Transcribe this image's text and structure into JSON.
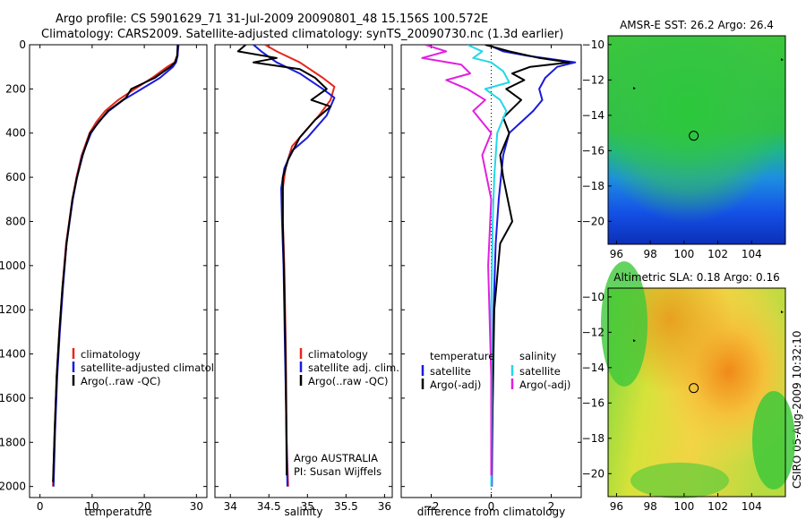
{
  "header": {
    "line1": "Argo profile: CS 5901629_71 31-Jul-2009 20090801_48 15.156S 100.572E",
    "line2": "Climatology: CARS2009. Satellite-adjusted climatology: synTS_20090730.nc (1.3d earlier)"
  },
  "side_label": "CSIRO 05-Aug-2009 10:32:10",
  "colors": {
    "climatology": "#e8261c",
    "satellite": "#1a1adc",
    "argo": "#000000",
    "satellite_salinity": "#22d8e8",
    "argo_salinity_adj": "#e020e0"
  },
  "chart_data": [
    {
      "type": "line",
      "name": "temperature-profile",
      "xlabel": "temperature",
      "ylabel": "",
      "xlim": [
        -2,
        32
      ],
      "ylim": [
        2050,
        0
      ],
      "xticks": [
        0,
        10,
        20,
        30
      ],
      "yticks": [
        0,
        200,
        400,
        600,
        800,
        1000,
        1200,
        1400,
        1600,
        1800,
        2000
      ],
      "legend": [
        "climatology",
        "satellite-adjusted climatology",
        "Argo(..raw -QC)"
      ],
      "series": [
        {
          "name": "climatology",
          "color": "#e8261c",
          "x": [
            26.6,
            26.3,
            25.8,
            24.4,
            21.5,
            18.2,
            15.0,
            12.5,
            10.8,
            9.5,
            8.0,
            7.0,
            6.2,
            5.0,
            4.3,
            3.7,
            3.2,
            2.8,
            2.5
          ],
          "y": [
            0,
            50,
            80,
            100,
            150,
            200,
            250,
            300,
            350,
            400,
            500,
            600,
            700,
            900,
            1100,
            1300,
            1500,
            1750,
            2000
          ]
        },
        {
          "name": "satellite-adjusted climatology",
          "color": "#1a1adc",
          "x": [
            26.5,
            26.4,
            26.1,
            25.5,
            23.0,
            19.5,
            16.0,
            13.2,
            11.2,
            9.8,
            8.1,
            7.1,
            6.3,
            5.1,
            4.4,
            3.8,
            3.3,
            2.9,
            2.6
          ],
          "y": [
            0,
            50,
            80,
            100,
            150,
            200,
            250,
            300,
            350,
            400,
            500,
            600,
            700,
            900,
            1100,
            1300,
            1500,
            1750,
            2000
          ]
        },
        {
          "name": "Argo(..raw -QC)",
          "color": "#000000",
          "x": [
            26.4,
            26.3,
            25.9,
            25.0,
            22.0,
            17.5,
            16.5,
            13.0,
            11.3,
            9.6,
            8.2,
            7.1,
            6.2,
            5.1,
            4.3,
            3.7,
            3.2,
            2.8,
            2.5
          ],
          "y": [
            0,
            50,
            80,
            100,
            150,
            200,
            240,
            300,
            350,
            400,
            500,
            600,
            700,
            900,
            1100,
            1300,
            1500,
            1750,
            1980
          ]
        }
      ]
    },
    {
      "type": "line",
      "name": "salinity-profile",
      "xlabel": "salinity",
      "ylabel": "",
      "xlim": [
        33.8,
        36.1
      ],
      "ylim": [
        2050,
        0
      ],
      "xticks": [
        34,
        34.5,
        35,
        35.5,
        36
      ],
      "yticks": [
        0,
        200,
        400,
        600,
        800,
        1000,
        1200,
        1400,
        1600,
        1800,
        2000
      ],
      "legend": [
        "climatology",
        "satellite adj. clim.",
        "Argo(..raw -QC)"
      ],
      "annotation": [
        "Argo AUSTRALIA",
        "PI: Susan Wijffels"
      ],
      "series": [
        {
          "name": "climatology",
          "color": "#e8261c",
          "x": [
            34.45,
            34.6,
            34.9,
            35.2,
            35.35,
            35.3,
            35.15,
            34.95,
            34.8,
            34.72,
            34.68,
            34.68,
            34.7,
            34.72,
            34.73,
            34.75
          ],
          "y": [
            0,
            30,
            80,
            150,
            190,
            250,
            320,
            400,
            460,
            550,
            650,
            800,
            1000,
            1400,
            1800,
            2000
          ]
        },
        {
          "name": "satellite adj. clim.",
          "color": "#1a1adc",
          "x": [
            34.3,
            34.4,
            34.6,
            34.9,
            35.2,
            35.35,
            35.25,
            35.0,
            34.8,
            34.7,
            34.66,
            34.67,
            34.69,
            34.71,
            34.73,
            34.74
          ],
          "y": [
            0,
            30,
            80,
            130,
            200,
            240,
            320,
            420,
            480,
            560,
            650,
            800,
            1000,
            1400,
            1800,
            2000
          ]
        },
        {
          "name": "Argo(..raw -QC)",
          "color": "#000000",
          "x": [
            34.2,
            34.1,
            34.6,
            34.3,
            34.9,
            35.1,
            35.25,
            35.05,
            35.3,
            35.1,
            34.9,
            34.75,
            34.68,
            34.68,
            34.7,
            34.72,
            34.73
          ],
          "y": [
            0,
            30,
            60,
            80,
            110,
            150,
            200,
            250,
            280,
            340,
            420,
            520,
            600,
            800,
            1100,
            1500,
            1950
          ]
        }
      ]
    },
    {
      "type": "line",
      "name": "difference-profile",
      "xlabel": "difference from climatology",
      "ylabel": "",
      "xlim": [
        -3,
        3
      ],
      "ylim": [
        2050,
        0
      ],
      "xticks": [
        -2,
        0,
        2
      ],
      "yticks": [
        0,
        200,
        400,
        600,
        800,
        1000,
        1200,
        1400,
        1600,
        1800,
        2000
      ],
      "legend_groups": [
        {
          "title": "temperature",
          "entries": [
            "satellite",
            "Argo(-adj)"
          ]
        },
        {
          "title": "salinity",
          "entries": [
            "satellite",
            "Argo(-adj)"
          ]
        }
      ],
      "series": [
        {
          "name": "temperature satellite",
          "color": "#1a1adc",
          "x": [
            -0.1,
            0.4,
            1.2,
            2.8,
            2.2,
            1.8,
            1.6,
            1.7,
            1.4,
            1.0,
            0.6,
            0.4,
            0.25,
            0.15,
            0.08,
            0.05,
            0.02
          ],
          "y": [
            0,
            30,
            50,
            80,
            100,
            150,
            200,
            250,
            300,
            350,
            400,
            500,
            700,
            900,
            1200,
            1600,
            2000
          ]
        },
        {
          "name": "temperature Argo(-adj)",
          "color": "#000000",
          "x": [
            -0.2,
            0.6,
            1.6,
            2.6,
            1.3,
            0.7,
            1.1,
            0.5,
            1.0,
            0.4,
            0.6,
            0.3,
            0.4,
            0.7,
            0.3,
            0.1,
            0.05,
            0.0
          ],
          "y": [
            0,
            30,
            60,
            80,
            100,
            130,
            160,
            200,
            250,
            330,
            400,
            500,
            600,
            800,
            900,
            1200,
            1600,
            1950
          ]
        },
        {
          "name": "salinity satellite",
          "color": "#22d8e8",
          "x": [
            -0.8,
            -0.3,
            -0.6,
            0.0,
            0.4,
            0.6,
            -0.2,
            0.3,
            0.5,
            0.2,
            0.1,
            0.05,
            0.0,
            0.02,
            0.0
          ],
          "y": [
            0,
            30,
            60,
            80,
            120,
            170,
            200,
            250,
            300,
            400,
            600,
            800,
            1200,
            1600,
            2000
          ]
        },
        {
          "name": "salinity Argo(-adj)",
          "color": "#e020e0",
          "x": [
            -2.2,
            -1.5,
            -2.3,
            -1.0,
            -0.7,
            -1.5,
            -0.8,
            -0.2,
            -0.6,
            0.0,
            -0.3,
            0.0,
            -0.1,
            0.0,
            0.0
          ],
          "y": [
            0,
            30,
            60,
            90,
            130,
            160,
            200,
            250,
            300,
            400,
            500,
            700,
            1000,
            1500,
            1950
          ]
        }
      ]
    },
    {
      "type": "heatmap",
      "name": "amsre-sst-map",
      "title": "AMSR-E SST: 26.2 Argo: 26.4",
      "xlim": [
        95.5,
        106
      ],
      "ylim": [
        -21.3,
        -9.5
      ],
      "xticks": [
        96,
        98,
        100,
        102,
        104
      ],
      "yticks": [
        -10,
        -12,
        -14,
        -16,
        -18,
        -20
      ],
      "marker": {
        "lon": 100.572,
        "lat": -15.156
      }
    },
    {
      "type": "heatmap",
      "name": "altimetric-sla-map",
      "title": "Altimetric SLA: 0.18 Argo: 0.16",
      "xlim": [
        95.5,
        106
      ],
      "ylim": [
        -21.3,
        -9.5
      ],
      "xticks": [
        96,
        98,
        100,
        102,
        104
      ],
      "yticks": [
        -10,
        -12,
        -14,
        -16,
        -18,
        -20
      ],
      "marker": {
        "lon": 100.572,
        "lat": -15.156
      }
    }
  ]
}
